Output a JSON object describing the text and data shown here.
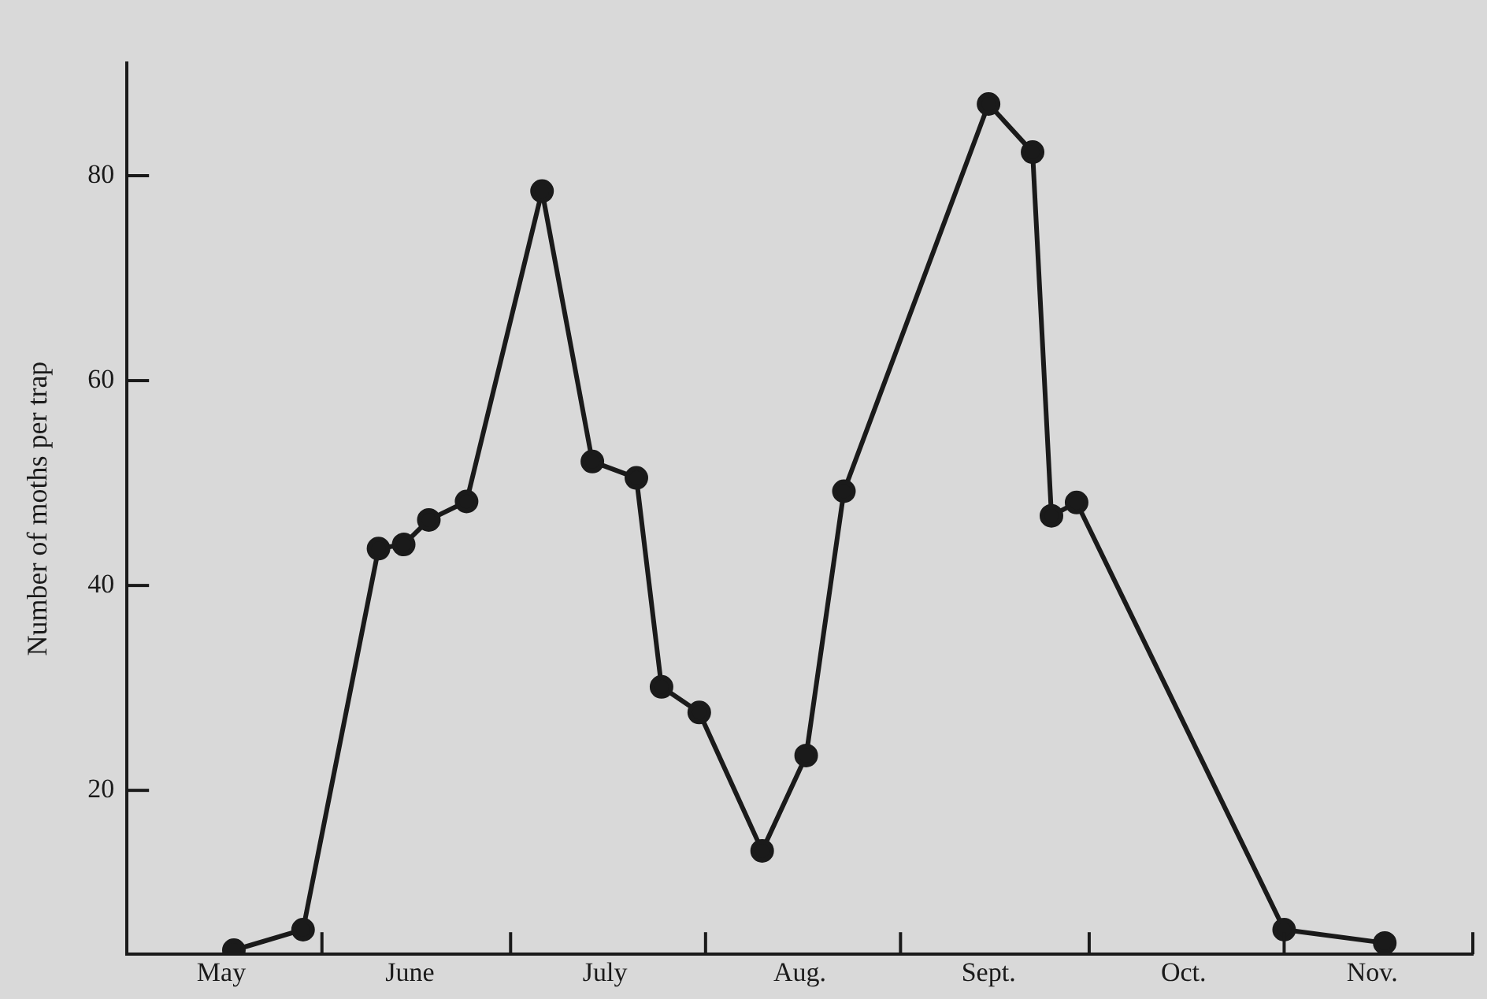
{
  "chart_data": {
    "type": "line",
    "ylabel": "Number of moths per trap",
    "x": [
      "--05-18",
      "--05-29",
      "--06-10",
      "--06-14",
      "--06-18",
      "--06-24",
      "--07-06",
      "--07-14",
      "--07-21",
      "--07-25",
      "--07-31",
      "--08-10",
      "--08-17",
      "--08-23",
      "--09-15",
      "--09-22",
      "--09-25",
      "--09-29",
      "--11-01",
      "--11-17"
    ],
    "series": [
      {
        "color": "#1a1a1a",
        "values": [
          4.4,
          6.4,
          43.6,
          44.0,
          46.4,
          48.2,
          78.5,
          52.1,
          50.5,
          30.1,
          27.6,
          14.1,
          23.4,
          49.2,
          87.0,
          82.3,
          46.8,
          48.1,
          6.4,
          5.1
        ]
      }
    ],
    "xlim": [
      "--05-01",
      "--12-01"
    ],
    "xticks": [
      {
        "value": "--05-16",
        "label": "May"
      },
      {
        "value": "--06-01",
        "label": null
      },
      {
        "value": "--06-15",
        "label": "June"
      },
      {
        "value": "--07-01",
        "label": null
      },
      {
        "value": "--07-16",
        "label": "July"
      },
      {
        "value": "--08-01",
        "label": null
      },
      {
        "value": "--08-16",
        "label": "Aug."
      },
      {
        "value": "--09-01",
        "label": null
      },
      {
        "value": "--09-15",
        "label": "Sept."
      },
      {
        "value": "--10-01",
        "label": null
      },
      {
        "value": "--10-16",
        "label": "Oct."
      },
      {
        "value": "--11-01",
        "label": null
      },
      {
        "value": "--11-15",
        "label": "Nov."
      },
      {
        "value": "--12-01",
        "label": null
      }
    ],
    "ylim": [
      4,
      91
    ],
    "yticks": [
      20,
      40,
      60,
      80
    ],
    "grid": false,
    "legend": false,
    "marker": "circle",
    "line_style": "solid"
  }
}
